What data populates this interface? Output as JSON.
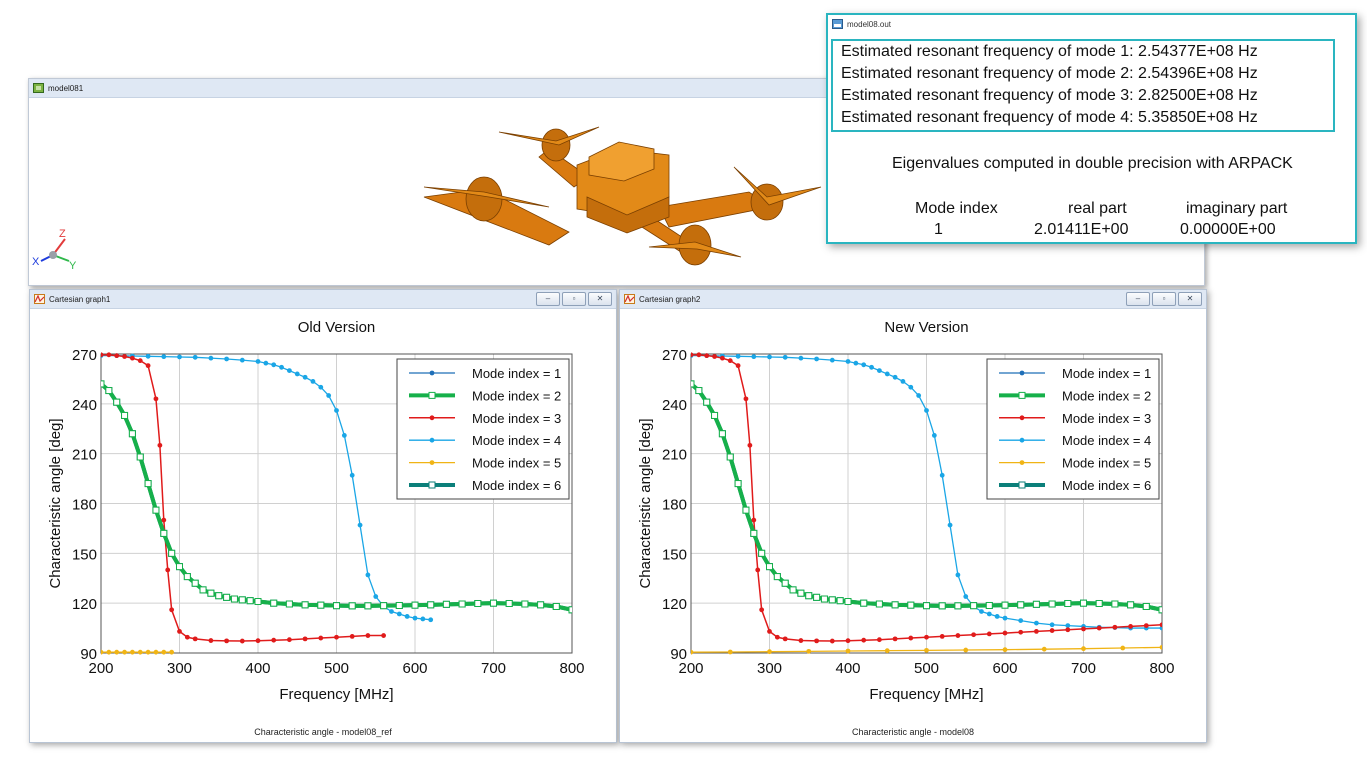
{
  "viewer": {
    "title": "model081",
    "axis_z": "Z",
    "axis_x": "X",
    "axis_y": "Y",
    "drone_color": "#e28a18"
  },
  "output": {
    "title": "model08.out",
    "lines": [
      "Estimated resonant frequency of mode 1:  2.54377E+08 Hz",
      "Estimated resonant frequency of mode 2:  2.54396E+08 Hz",
      "Estimated resonant frequency of mode 3:  2.82500E+08 Hz",
      "Estimated resonant frequency of mode 4:  5.35850E+08 Hz"
    ],
    "eigen_note": "Eigenvalues computed in double precision with ARPACK",
    "table_headers": [
      "Mode index",
      "real part",
      "imaginary part"
    ],
    "table_row": [
      "1",
      "2.01411E+00",
      "0.00000E+00"
    ]
  },
  "window_buttons": [
    "‒",
    "▫",
    "✕"
  ],
  "graphs": [
    {
      "window_title": "Cartesian graph1",
      "caption": "Characteristic angle - model08_ref"
    },
    {
      "window_title": "Cartesian graph2",
      "caption": "Characteristic angle - model08"
    }
  ],
  "chart_data": [
    {
      "type": "line",
      "title": "Old Version",
      "xlabel": "Frequency [MHz]",
      "ylabel": "Characteristic angle [deg]",
      "xlim": [
        200,
        800
      ],
      "ylim": [
        90,
        270
      ],
      "xticks": [
        200,
        300,
        400,
        500,
        600,
        700,
        800
      ],
      "yticks": [
        90,
        120,
        150,
        180,
        210,
        240,
        270
      ],
      "grid": true,
      "legend_position": "top-right",
      "series": [
        {
          "name": "Mode index = 1",
          "color": "#1f6fb8",
          "width": 1.2,
          "marker": "dot",
          "x": [
            200,
            210,
            220,
            230,
            240,
            250,
            260,
            270,
            280,
            290,
            300,
            310,
            320,
            330,
            340,
            350,
            360,
            370,
            380,
            390,
            400,
            420,
            440,
            460,
            480,
            500,
            520,
            540,
            560,
            580,
            600,
            620,
            640,
            660,
            680,
            700,
            720,
            740,
            760,
            780,
            800
          ],
          "y": [
            252,
            248,
            241,
            233,
            222,
            208,
            192,
            176,
            162,
            150,
            142,
            136,
            132,
            128,
            126,
            124.5,
            123.5,
            122.5,
            122,
            121.5,
            121,
            120,
            119.5,
            119,
            118.8,
            118.5,
            118.4,
            118.4,
            118.5,
            118.6,
            118.8,
            119,
            119.3,
            119.5,
            119.8,
            120,
            119.8,
            119.5,
            119,
            118,
            116
          ]
        },
        {
          "name": "Mode index = 2",
          "color": "#16b04a",
          "width": 4,
          "marker": "square",
          "x": [
            200,
            210,
            220,
            230,
            240,
            250,
            260,
            270,
            280,
            290,
            300,
            310,
            320,
            330,
            340,
            350,
            360,
            370,
            380,
            390,
            400,
            420,
            440,
            460,
            480,
            500,
            520,
            540,
            560,
            580,
            600,
            620,
            640,
            660,
            680,
            700,
            720,
            740,
            760,
            780,
            800
          ],
          "y": [
            252,
            248,
            241,
            233,
            222,
            208,
            192,
            176,
            162,
            150,
            142,
            136,
            132,
            128,
            126,
            124.5,
            123.5,
            122.5,
            122,
            121.5,
            121,
            120,
            119.5,
            119,
            118.8,
            118.5,
            118.4,
            118.4,
            118.5,
            118.6,
            118.8,
            119,
            119.3,
            119.5,
            119.8,
            120,
            119.8,
            119.5,
            119,
            118,
            116
          ]
        },
        {
          "name": "Mode index = 3",
          "color": "#e01b1b",
          "width": 1.5,
          "marker": "dot",
          "x": [
            200,
            210,
            220,
            230,
            240,
            250,
            260,
            270,
            275,
            280,
            285,
            290,
            300,
            310,
            320,
            340,
            360,
            380,
            400,
            420,
            440,
            460,
            480,
            500,
            520,
            540,
            560
          ],
          "y": [
            269.5,
            269.5,
            269,
            268.5,
            267.5,
            266,
            263,
            243,
            215,
            170,
            140,
            116,
            103,
            99.5,
            98.5,
            97.5,
            97.3,
            97.2,
            97.4,
            97.7,
            98,
            98.5,
            99,
            99.5,
            100,
            100.5,
            100.5
          ]
        },
        {
          "name": "Mode index = 4",
          "color": "#1aa6e6",
          "width": 1.3,
          "marker": "dot",
          "x": [
            200,
            220,
            240,
            260,
            280,
            300,
            320,
            340,
            360,
            380,
            400,
            410,
            420,
            430,
            440,
            450,
            460,
            470,
            480,
            490,
            500,
            510,
            520,
            530,
            540,
            550,
            560,
            570,
            580,
            590,
            600,
            610,
            620
          ],
          "y": [
            269,
            269,
            268.8,
            268.6,
            268.4,
            268.2,
            268,
            267.5,
            267,
            266.3,
            265.5,
            264.5,
            263.5,
            262,
            260,
            258,
            256,
            253.5,
            250,
            245,
            236,
            221,
            197,
            167,
            137,
            124,
            118,
            115,
            113.5,
            112,
            111,
            110.5,
            110
          ]
        },
        {
          "name": "Mode index = 5",
          "color": "#f0b415",
          "width": 1.3,
          "marker": "dot",
          "x": [
            200,
            210,
            220,
            230,
            240,
            250,
            260,
            270,
            280,
            290
          ],
          "y": [
            90.5,
            90.5,
            90.5,
            90.5,
            90.5,
            90.5,
            90.5,
            90.5,
            90.5,
            90.5
          ]
        },
        {
          "name": "Mode index = 6",
          "color": "#0b7f7a",
          "width": 4,
          "marker": "square",
          "x": [
            200,
            210,
            220,
            230,
            240,
            250,
            260,
            270,
            280,
            290,
            300,
            310,
            320,
            330,
            340,
            350,
            360,
            370,
            380,
            390,
            400,
            420,
            440,
            460,
            480,
            500,
            520,
            540,
            560,
            580,
            600,
            620,
            640,
            660,
            680,
            700,
            720,
            740,
            760,
            780,
            800
          ],
          "y": [
            252,
            248,
            241,
            233,
            222,
            208,
            192,
            176,
            162,
            150,
            142,
            136,
            132,
            128,
            126,
            124.5,
            123.5,
            122.5,
            122,
            121.5,
            121,
            120,
            119.5,
            119,
            118.8,
            118.5,
            118.4,
            118.4,
            118.5,
            118.6,
            118.8,
            119,
            119.3,
            119.5,
            119.8,
            120,
            119.8,
            119.5,
            119,
            118,
            116
          ]
        }
      ]
    },
    {
      "type": "line",
      "title": "New Version",
      "xlabel": "Frequency [MHz]",
      "ylabel": "Characteristic angle [deg]",
      "xlim": [
        200,
        800
      ],
      "ylim": [
        90,
        270
      ],
      "xticks": [
        200,
        300,
        400,
        500,
        600,
        700,
        800
      ],
      "yticks": [
        90,
        120,
        150,
        180,
        210,
        240,
        270
      ],
      "grid": true,
      "legend_position": "top-right",
      "series": [
        {
          "name": "Mode index = 1",
          "color": "#1f6fb8",
          "width": 1.2,
          "marker": "dot",
          "x": [
            200,
            210,
            220,
            230,
            240,
            250,
            260,
            270,
            280,
            290,
            300,
            310,
            320,
            330,
            340,
            350,
            360,
            370,
            380,
            390,
            400,
            420,
            440,
            460,
            480,
            500,
            520,
            540,
            560,
            580,
            600,
            620,
            640,
            660,
            680,
            700,
            720,
            740,
            760,
            780,
            800
          ],
          "y": [
            252,
            248,
            241,
            233,
            222,
            208,
            192,
            176,
            162,
            150,
            142,
            136,
            132,
            128,
            126,
            124.5,
            123.5,
            122.5,
            122,
            121.5,
            121,
            120,
            119.5,
            119,
            118.8,
            118.5,
            118.4,
            118.4,
            118.5,
            118.6,
            118.8,
            119,
            119.3,
            119.5,
            119.8,
            120,
            119.8,
            119.5,
            119,
            118,
            116
          ]
        },
        {
          "name": "Mode index = 2",
          "color": "#16b04a",
          "width": 4,
          "marker": "square",
          "x": [
            200,
            210,
            220,
            230,
            240,
            250,
            260,
            270,
            280,
            290,
            300,
            310,
            320,
            330,
            340,
            350,
            360,
            370,
            380,
            390,
            400,
            420,
            440,
            460,
            480,
            500,
            520,
            540,
            560,
            580,
            600,
            620,
            640,
            660,
            680,
            700,
            720,
            740,
            760,
            780,
            800
          ],
          "y": [
            252,
            248,
            241,
            233,
            222,
            208,
            192,
            176,
            162,
            150,
            142,
            136,
            132,
            128,
            126,
            124.5,
            123.5,
            122.5,
            122,
            121.5,
            121,
            120,
            119.5,
            119,
            118.8,
            118.5,
            118.4,
            118.4,
            118.5,
            118.6,
            118.8,
            119,
            119.3,
            119.5,
            119.8,
            120,
            119.8,
            119.5,
            119,
            118,
            116
          ]
        },
        {
          "name": "Mode index = 3",
          "color": "#e01b1b",
          "width": 1.5,
          "marker": "dot",
          "x": [
            200,
            210,
            220,
            230,
            240,
            250,
            260,
            270,
            275,
            280,
            285,
            290,
            300,
            310,
            320,
            340,
            360,
            380,
            400,
            420,
            440,
            460,
            480,
            500,
            520,
            540,
            560,
            580,
            600,
            620,
            640,
            660,
            680,
            700,
            720,
            740,
            760,
            780,
            800
          ],
          "y": [
            269.5,
            269.5,
            269,
            268.5,
            267.5,
            266,
            263,
            243,
            215,
            170,
            140,
            116,
            103,
            99.5,
            98.5,
            97.5,
            97.3,
            97.2,
            97.4,
            97.7,
            98,
            98.5,
            99,
            99.5,
            100,
            100.5,
            101,
            101.5,
            102,
            102.5,
            103,
            103.5,
            104,
            104.5,
            105,
            105.5,
            106,
            106.5,
            107
          ]
        },
        {
          "name": "Mode index = 4",
          "color": "#1aa6e6",
          "width": 1.3,
          "marker": "dot",
          "x": [
            200,
            220,
            240,
            260,
            280,
            300,
            320,
            340,
            360,
            380,
            400,
            410,
            420,
            430,
            440,
            450,
            460,
            470,
            480,
            490,
            500,
            510,
            520,
            530,
            540,
            550,
            560,
            570,
            580,
            590,
            600,
            620,
            640,
            660,
            680,
            700,
            720,
            740,
            760,
            780,
            800
          ],
          "y": [
            269,
            269,
            268.8,
            268.6,
            268.4,
            268.2,
            268,
            267.5,
            267,
            266.3,
            265.5,
            264.5,
            263.5,
            262,
            260,
            258,
            256,
            253.5,
            250,
            245,
            236,
            221,
            197,
            167,
            137,
            124,
            118,
            115,
            113.5,
            112,
            111,
            109.5,
            108,
            107,
            106.5,
            106,
            105.5,
            105.3,
            105,
            105,
            105
          ]
        },
        {
          "name": "Mode index = 5",
          "color": "#f0b415",
          "width": 1.3,
          "marker": "dot",
          "x": [
            200,
            250,
            300,
            350,
            400,
            450,
            500,
            550,
            600,
            650,
            700,
            750,
            800
          ],
          "y": [
            90.5,
            90.6,
            90.8,
            91,
            91.2,
            91.4,
            91.6,
            91.8,
            92,
            92.3,
            92.6,
            93,
            93.4
          ]
        },
        {
          "name": "Mode index = 6",
          "color": "#0b7f7a",
          "width": 4,
          "marker": "square",
          "x": [
            200,
            210,
            220,
            230,
            240,
            250,
            260,
            270,
            280,
            290,
            300,
            310,
            320,
            330,
            340,
            350,
            360,
            370,
            380,
            390,
            400,
            420,
            440,
            460,
            480,
            500,
            520,
            540,
            560,
            580,
            600,
            620,
            640,
            660,
            680,
            700,
            720,
            740,
            760,
            780,
            800
          ],
          "y": [
            252,
            248,
            241,
            233,
            222,
            208,
            192,
            176,
            162,
            150,
            142,
            136,
            132,
            128,
            126,
            124.5,
            123.5,
            122.5,
            122,
            121.5,
            121,
            120,
            119.5,
            119,
            118.8,
            118.5,
            118.4,
            118.4,
            118.5,
            118.6,
            118.8,
            119,
            119.3,
            119.5,
            119.8,
            120,
            119.8,
            119.5,
            119,
            118,
            116
          ]
        }
      ]
    }
  ]
}
